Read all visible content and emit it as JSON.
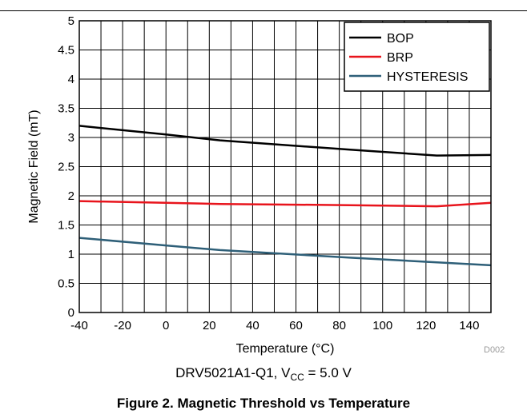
{
  "chart_data": {
    "type": "line",
    "xlabel": "Temperature (°C)",
    "ylabel": "Magnetic Field (mT)",
    "xlim": [
      -40,
      150
    ],
    "ylim": [
      0,
      5
    ],
    "x_ticks": [
      -40,
      -20,
      0,
      20,
      40,
      60,
      80,
      100,
      120,
      140
    ],
    "x_tick_labels": [
      "-40",
      "-20",
      "0",
      "20",
      "40",
      "60",
      "80",
      "100",
      "120",
      "140"
    ],
    "y_ticks": [
      0,
      0.5,
      1,
      1.5,
      2,
      2.5,
      3,
      3.5,
      4,
      4.5,
      5
    ],
    "y_tick_labels": [
      "0",
      "0.5",
      "1",
      "1.5",
      "2",
      "2.5",
      "3",
      "3.5",
      "4",
      "4.5",
      "5"
    ],
    "x_grid_step": 10,
    "y_grid_step": 0.5,
    "grid": true,
    "legend_position": "top-right",
    "series": [
      {
        "name": "BOP",
        "color": "#000000",
        "points": [
          [
            -40,
            3.2
          ],
          [
            0,
            3.05
          ],
          [
            25,
            2.95
          ],
          [
            85,
            2.79
          ],
          [
            125,
            2.69
          ],
          [
            150,
            2.7
          ]
        ]
      },
      {
        "name": "BRP",
        "color": "#e8141c",
        "points": [
          [
            -40,
            1.91
          ],
          [
            0,
            1.88
          ],
          [
            25,
            1.86
          ],
          [
            85,
            1.84
          ],
          [
            125,
            1.82
          ],
          [
            150,
            1.88
          ]
        ]
      },
      {
        "name": "HYSTERESIS",
        "color": "#2e5f78",
        "points": [
          [
            -40,
            1.28
          ],
          [
            0,
            1.15
          ],
          [
            25,
            1.07
          ],
          [
            85,
            0.94
          ],
          [
            125,
            0.86
          ],
          [
            150,
            0.81
          ]
        ]
      }
    ]
  },
  "source_id": "D002",
  "conditions": {
    "prefix": "DRV5021A1-Q1, V",
    "subscript": "CC",
    "suffix": " = 5.0 V"
  },
  "caption": "Figure 2. Magnetic Threshold vs Temperature"
}
